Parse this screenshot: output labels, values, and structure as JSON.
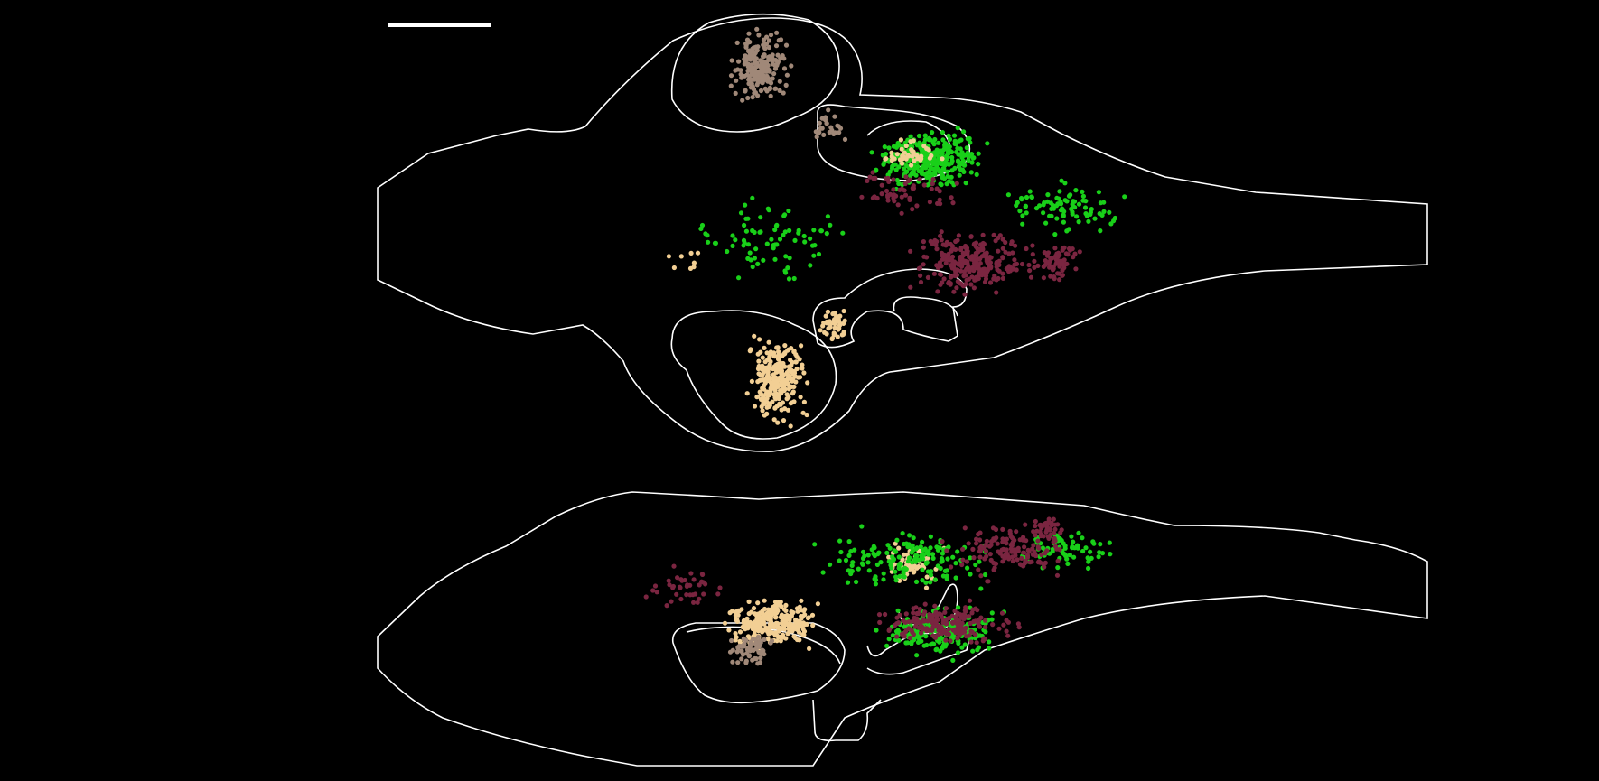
{
  "figure": {
    "background": "#000000",
    "outline_color": "#ffffff",
    "scale_bar": {
      "shown": true
    },
    "populations": [
      {
        "key": "taupe",
        "color": "#a08878"
      },
      {
        "key": "green",
        "color": "#19d019"
      },
      {
        "key": "maroon",
        "color": "#7a2540"
      },
      {
        "key": "beige",
        "color": "#f2cf94"
      }
    ],
    "views": [
      "dorsal",
      "lateral"
    ]
  }
}
